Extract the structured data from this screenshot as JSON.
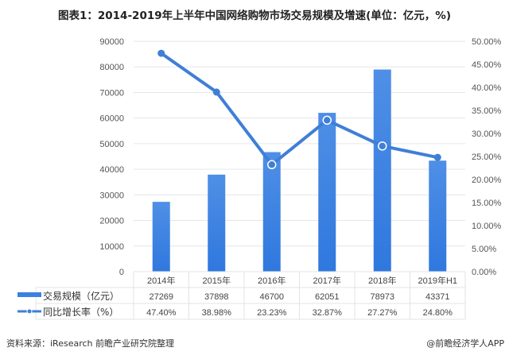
{
  "title": "图表1：2014-2019年上半年中国网络购物市场交易规模及增速(单位：亿元，%)",
  "source": "资料来源：iResearch 前瞻产业研究院整理",
  "credit": "@前瞻经济学人APP",
  "colors": {
    "bar": "#3b82e0",
    "line": "#3f7fd6",
    "grid": "#e6e6e6"
  },
  "chart_data": {
    "type": "bar+line",
    "categories": [
      "2014年",
      "2015年",
      "2016年",
      "2017年",
      "2018年",
      "2019年H1"
    ],
    "series": [
      {
        "name": "交易规模（亿元）",
        "type": "bar",
        "axis": "left",
        "values": [
          27269,
          37898,
          46700,
          62051,
          78973,
          43371
        ],
        "labels": [
          "27269",
          "37898",
          "46700",
          "62051",
          "78973",
          "43371"
        ]
      },
      {
        "name": "同比增长率（%）",
        "type": "line",
        "axis": "right",
        "values": [
          47.4,
          38.98,
          23.23,
          32.87,
          27.27,
          24.8
        ],
        "labels": [
          "47.40%",
          "38.98%",
          "23.23%",
          "32.87%",
          "27.27%",
          "24.80%"
        ]
      }
    ],
    "ylim_left": [
      0,
      90000
    ],
    "ylim_right": [
      0,
      50
    ],
    "yticks_left": [
      "0",
      "10000",
      "20000",
      "30000",
      "40000",
      "50000",
      "60000",
      "70000",
      "80000",
      "90000"
    ],
    "yticks_right": [
      "0.00%",
      "5.00%",
      "10.00%",
      "15.00%",
      "20.00%",
      "25.00%",
      "30.00%",
      "35.00%",
      "40.00%",
      "45.00%",
      "50.00%"
    ],
    "grid": true,
    "legend": "data-table-below"
  }
}
